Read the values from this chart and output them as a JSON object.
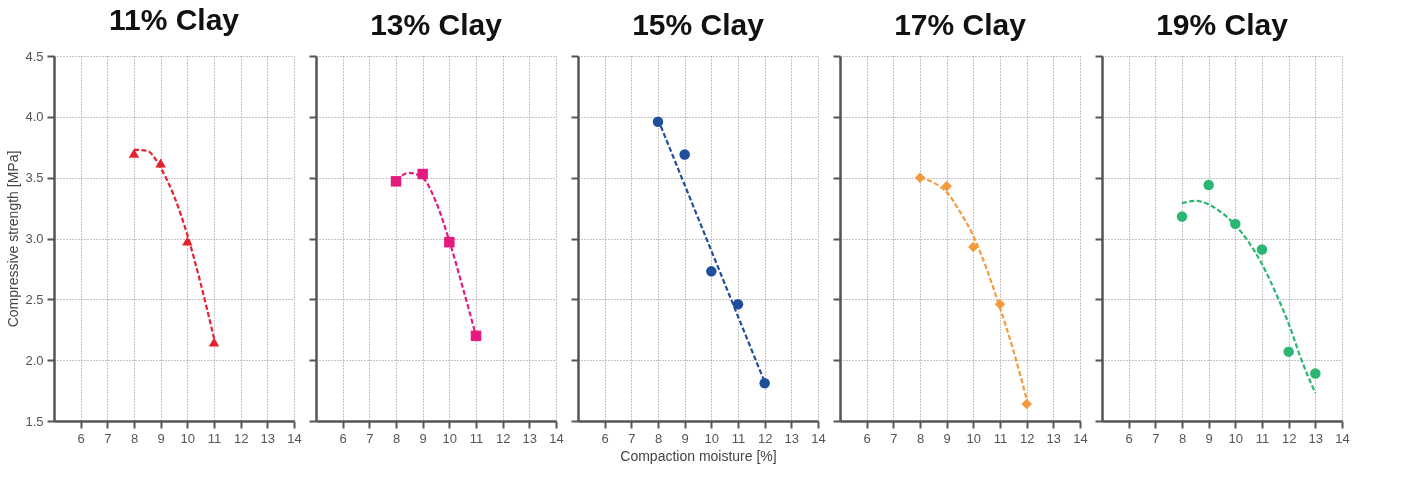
{
  "chart_data": [
    {
      "type": "scatter",
      "title": "11% Clay",
      "ylabel": "Compressive strength [MPa]",
      "xlim": [
        5,
        14
      ],
      "xticks": [
        6,
        7,
        8,
        9,
        10,
        11,
        12,
        13,
        14
      ],
      "ylim": [
        1.5,
        4.5
      ],
      "yticks": [
        1.5,
        {
          "value": 2,
          "label": "2.0"
        },
        2.5,
        {
          "value": 3,
          "label": "3.0"
        },
        3.5,
        {
          "value": 4,
          "label": "4.0"
        },
        4.5
      ],
      "grid": true,
      "series": [
        {
          "type": "line",
          "color": "#e8202a",
          "line_style": "dashed",
          "x": [
            8,
            8.5,
            9,
            9.5,
            10,
            10.5,
            11
          ],
          "values": [
            3.73,
            3.72,
            3.58,
            3.35,
            3.03,
            2.63,
            2.18
          ]
        },
        {
          "type": "scatter",
          "color": "#e8202a",
          "marker": "triangle",
          "x": [
            8,
            9,
            10,
            11
          ],
          "values": [
            3.7,
            3.62,
            2.98,
            2.15
          ]
        }
      ]
    },
    {
      "type": "scatter",
      "title": "13% Clay",
      "xlim": [
        5,
        14
      ],
      "xticks": [
        6,
        7,
        8,
        9,
        10,
        11,
        12,
        13,
        14
      ],
      "ylim": [
        1.5,
        4.5
      ],
      "yticks": [
        1.5,
        2.0,
        2.5,
        3.0,
        3.5,
        4.0,
        4.5
      ],
      "grid": true,
      "tick_labels": "x",
      "series": [
        {
          "type": "line",
          "color": "#e6197f",
          "line_style": "dashed",
          "x": [
            8,
            8.5,
            9,
            9.5,
            10,
            10.5,
            11
          ],
          "values": [
            3.48,
            3.54,
            3.5,
            3.3,
            2.98,
            2.6,
            2.2
          ]
        },
        {
          "type": "scatter",
          "color": "#e6197f",
          "marker": "square",
          "x": [
            8,
            9,
            10,
            11
          ],
          "values": [
            3.47,
            3.53,
            2.97,
            2.2
          ]
        }
      ]
    },
    {
      "type": "scatter",
      "title": "15% Clay",
      "xlabel": "Compaction moisture [%]",
      "xlim": [
        5,
        14
      ],
      "xticks": [
        6,
        7,
        8,
        9,
        10,
        11,
        12,
        13,
        14
      ],
      "ylim": [
        1.5,
        4.5
      ],
      "yticks": [
        1.5,
        2.0,
        2.5,
        3.0,
        3.5,
        4.0,
        4.5
      ],
      "grid": true,
      "tick_labels": "x",
      "series": [
        {
          "type": "line",
          "color": "#1f4e9c",
          "line_style": "dashed",
          "x": [
            8,
            12
          ],
          "values": [
            3.98,
            1.82
          ]
        },
        {
          "type": "scatter",
          "color": "#1f4e9c",
          "marker": "circle",
          "x": [
            8,
            9,
            10,
            11,
            12
          ],
          "values": [
            3.96,
            3.69,
            2.73,
            2.46,
            1.81
          ]
        }
      ]
    },
    {
      "type": "scatter",
      "title": "17% Clay",
      "xlim": [
        5,
        14
      ],
      "xticks": [
        6,
        7,
        8,
        9,
        10,
        11,
        12,
        13,
        14
      ],
      "ylim": [
        1.5,
        4.5
      ],
      "yticks": [
        1.5,
        2.0,
        2.5,
        3.0,
        3.5,
        4.0,
        4.5
      ],
      "grid": true,
      "tick_labels": "x",
      "series": [
        {
          "type": "line",
          "color": "#f59a3c",
          "line_style": "dashed",
          "x": [
            8,
            8.5,
            9,
            9.5,
            10,
            10.5,
            11,
            11.5,
            12
          ],
          "values": [
            3.5,
            3.46,
            3.38,
            3.22,
            3.02,
            2.75,
            2.43,
            2.08,
            1.68
          ]
        },
        {
          "type": "scatter",
          "color": "#f59a3c",
          "marker": "diamond",
          "x": [
            8,
            9,
            10,
            11,
            12
          ],
          "values": [
            3.5,
            3.43,
            2.93,
            2.46,
            1.64
          ]
        }
      ]
    },
    {
      "type": "scatter",
      "title": "19% Clay",
      "xlim": [
        5,
        14
      ],
      "xticks": [
        6,
        7,
        8,
        9,
        10,
        11,
        12,
        13,
        14
      ],
      "ylim": [
        1.5,
        4.5
      ],
      "yticks": [
        1.5,
        2.0,
        2.5,
        3.0,
        3.5,
        4.0,
        4.5
      ],
      "grid": true,
      "tick_labels": "x",
      "series": [
        {
          "type": "line",
          "color": "#2bb673",
          "line_style": "dashed",
          "x": [
            8,
            8.5,
            9,
            9.5,
            10,
            10.5,
            11,
            11.5,
            12,
            12.5,
            13
          ],
          "values": [
            3.29,
            3.31,
            3.28,
            3.21,
            3.11,
            2.97,
            2.79,
            2.56,
            2.3,
            1.99,
            1.73
          ]
        },
        {
          "type": "scatter",
          "color": "#2bb673",
          "marker": "circle",
          "x": [
            8,
            9,
            10,
            11,
            12,
            13
          ],
          "values": [
            3.18,
            3.44,
            3.12,
            2.91,
            2.07,
            1.89
          ]
        }
      ]
    }
  ]
}
